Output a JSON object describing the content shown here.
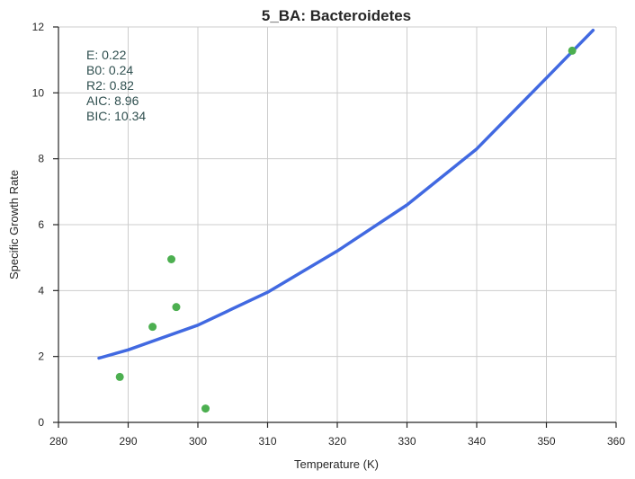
{
  "chart_data": {
    "type": "scatter",
    "title": "5_BA: Bacteroidetes",
    "xlabel": "Temperature (K)",
    "ylabel": "Specific Growth Rate",
    "xlim": [
      280,
      360
    ],
    "ylim": [
      0,
      12
    ],
    "xticks": [
      280,
      290,
      300,
      310,
      320,
      330,
      340,
      350,
      360
    ],
    "yticks": [
      0,
      2,
      4,
      6,
      8,
      10,
      12
    ],
    "grid": true,
    "points": [
      {
        "x": 288.8,
        "y": 1.38
      },
      {
        "x": 293.5,
        "y": 2.9
      },
      {
        "x": 296.2,
        "y": 4.95
      },
      {
        "x": 296.9,
        "y": 3.5
      },
      {
        "x": 301.1,
        "y": 0.42
      },
      {
        "x": 353.7,
        "y": 11.28
      }
    ],
    "fit_curve": {
      "x_range": [
        285.8,
        356.7
      ],
      "points": [
        [
          285.8,
          1.95
        ],
        [
          290,
          2.2
        ],
        [
          300,
          2.95
        ],
        [
          310,
          3.95
        ],
        [
          320,
          5.2
        ],
        [
          330,
          6.6
        ],
        [
          340,
          8.3
        ],
        [
          350,
          10.45
        ],
        [
          356.7,
          11.9
        ]
      ]
    },
    "colors": {
      "points": "#4caf50",
      "curve": "#4169e1"
    },
    "stats": [
      "E:  0.22",
      "B0:  0.24",
      "R2:  0.82",
      "AIC: 8.96",
      "BIC: 10.34"
    ]
  }
}
